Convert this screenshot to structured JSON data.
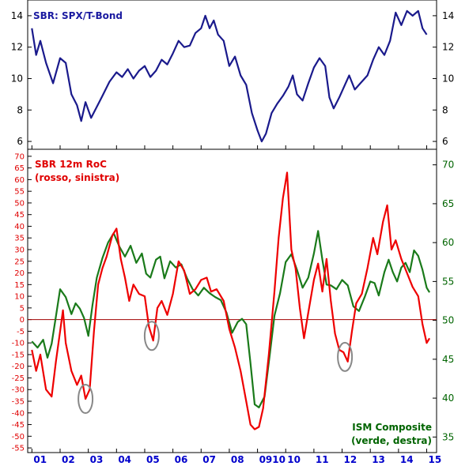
{
  "chart_data": [
    {
      "type": "line",
      "panel": "top",
      "title": "SBR: SPX/T-Bond",
      "ylim": [
        5.5,
        15
      ],
      "yticks": [
        6,
        8,
        10,
        12,
        14
      ],
      "grid": false,
      "series": [
        {
          "name": "SBR: SPX/T-Bond",
          "color": "#1a1a8c",
          "points": [
            [
              2001.0,
              13.2
            ],
            [
              2001.15,
              11.5
            ],
            [
              2001.3,
              12.4
            ],
            [
              2001.5,
              11.0
            ],
            [
              2001.75,
              9.7
            ],
            [
              2002.0,
              11.3
            ],
            [
              2002.2,
              11.0
            ],
            [
              2002.4,
              9.0
            ],
            [
              2002.6,
              8.3
            ],
            [
              2002.75,
              7.3
            ],
            [
              2002.9,
              8.5
            ],
            [
              2003.1,
              7.5
            ],
            [
              2003.3,
              8.2
            ],
            [
              2003.5,
              8.9
            ],
            [
              2003.75,
              9.8
            ],
            [
              2004.0,
              10.4
            ],
            [
              2004.2,
              10.1
            ],
            [
              2004.4,
              10.6
            ],
            [
              2004.6,
              10.0
            ],
            [
              2004.8,
              10.5
            ],
            [
              2005.0,
              10.8
            ],
            [
              2005.2,
              10.1
            ],
            [
              2005.4,
              10.5
            ],
            [
              2005.6,
              11.2
            ],
            [
              2005.8,
              10.9
            ],
            [
              2006.0,
              11.6
            ],
            [
              2006.2,
              12.4
            ],
            [
              2006.4,
              12.0
            ],
            [
              2006.6,
              12.1
            ],
            [
              2006.8,
              12.9
            ],
            [
              2007.0,
              13.2
            ],
            [
              2007.15,
              14.0
            ],
            [
              2007.3,
              13.2
            ],
            [
              2007.45,
              13.7
            ],
            [
              2007.6,
              12.8
            ],
            [
              2007.8,
              12.4
            ],
            [
              2008.0,
              10.8
            ],
            [
              2008.2,
              11.4
            ],
            [
              2008.4,
              10.2
            ],
            [
              2008.6,
              9.6
            ],
            [
              2008.8,
              7.8
            ],
            [
              2009.0,
              6.7
            ],
            [
              2009.15,
              6.0
            ],
            [
              2009.3,
              6.5
            ],
            [
              2009.5,
              7.8
            ],
            [
              2009.7,
              8.4
            ],
            [
              2009.9,
              8.9
            ],
            [
              2010.1,
              9.5
            ],
            [
              2010.25,
              10.2
            ],
            [
              2010.4,
              9.0
            ],
            [
              2010.6,
              8.6
            ],
            [
              2010.8,
              9.7
            ],
            [
              2011.0,
              10.7
            ],
            [
              2011.2,
              11.3
            ],
            [
              2011.4,
              10.8
            ],
            [
              2011.55,
              8.8
            ],
            [
              2011.7,
              8.1
            ],
            [
              2011.9,
              8.8
            ],
            [
              2012.1,
              9.6
            ],
            [
              2012.25,
              10.2
            ],
            [
              2012.45,
              9.3
            ],
            [
              2012.65,
              9.7
            ],
            [
              2012.9,
              10.2
            ],
            [
              2013.1,
              11.2
            ],
            [
              2013.3,
              12.0
            ],
            [
              2013.5,
              11.5
            ],
            [
              2013.7,
              12.4
            ],
            [
              2013.9,
              14.2
            ],
            [
              2014.1,
              13.4
            ],
            [
              2014.3,
              14.3
            ],
            [
              2014.5,
              14.0
            ],
            [
              2014.7,
              14.3
            ],
            [
              2014.85,
              13.2
            ],
            [
              2015.0,
              12.8
            ]
          ]
        }
      ]
    },
    {
      "type": "line",
      "panel": "bottom",
      "title": "SBR 12m RoC",
      "subtitle": "(rosso, sinistra)",
      "right_title": "ISM Composite",
      "right_subtitle": "(verde, destra)",
      "ylim_left": [
        -57,
        73
      ],
      "yticks_left": [
        -55,
        -50,
        -45,
        -40,
        -35,
        -30,
        -25,
        -20,
        -15,
        -10,
        -5,
        0,
        5,
        10,
        15,
        20,
        25,
        30,
        35,
        40,
        45,
        50,
        55,
        60,
        65,
        70
      ],
      "ylim_right": [
        33,
        72
      ],
      "yticks_right": [
        35,
        40,
        45,
        50,
        55,
        60,
        65,
        70
      ],
      "x_categories": [
        "01",
        "02",
        "03",
        "04",
        "05",
        "06",
        "07",
        "08",
        "0910",
        "10",
        "11",
        "12",
        "13",
        "14",
        "15"
      ],
      "xlim": [
        2000.85,
        2015.35
      ],
      "reference_line": {
        "axis": "left",
        "value": 0
      },
      "highlight_circles": [
        {
          "x": 2002.9,
          "y_left": -34
        },
        {
          "x": 2005.25,
          "y_left": -7
        },
        {
          "x": 2012.1,
          "y_left": -16
        }
      ],
      "grid": false,
      "series": [
        {
          "name": "SBR 12m RoC",
          "axis": "left",
          "color": "#ee0000",
          "points": [
            [
              2001.0,
              -13
            ],
            [
              2001.15,
              -22
            ],
            [
              2001.3,
              -15
            ],
            [
              2001.5,
              -30
            ],
            [
              2001.7,
              -33
            ],
            [
              2001.85,
              -18
            ],
            [
              2002.0,
              -5
            ],
            [
              2002.1,
              4
            ],
            [
              2002.2,
              -10
            ],
            [
              2002.4,
              -22
            ],
            [
              2002.6,
              -28
            ],
            [
              2002.75,
              -24
            ],
            [
              2002.9,
              -34
            ],
            [
              2003.05,
              -30
            ],
            [
              2003.2,
              -5
            ],
            [
              2003.35,
              15
            ],
            [
              2003.5,
              22
            ],
            [
              2003.65,
              27
            ],
            [
              2003.85,
              36
            ],
            [
              2004.0,
              39
            ],
            [
              2004.15,
              26
            ],
            [
              2004.3,
              18
            ],
            [
              2004.45,
              8
            ],
            [
              2004.6,
              15
            ],
            [
              2004.8,
              11
            ],
            [
              2005.0,
              10
            ],
            [
              2005.15,
              -3
            ],
            [
              2005.3,
              -9
            ],
            [
              2005.45,
              5
            ],
            [
              2005.6,
              8
            ],
            [
              2005.8,
              2
            ],
            [
              2006.0,
              11
            ],
            [
              2006.2,
              25
            ],
            [
              2006.4,
              21
            ],
            [
              2006.6,
              11
            ],
            [
              2006.8,
              13
            ],
            [
              2007.0,
              17
            ],
            [
              2007.2,
              18
            ],
            [
              2007.35,
              12
            ],
            [
              2007.55,
              13
            ],
            [
              2007.8,
              8
            ],
            [
              2008.0,
              -4
            ],
            [
              2008.2,
              -12
            ],
            [
              2008.4,
              -22
            ],
            [
              2008.6,
              -35
            ],
            [
              2008.75,
              -45
            ],
            [
              2008.9,
              -47
            ],
            [
              2009.05,
              -46
            ],
            [
              2009.2,
              -38
            ],
            [
              2009.4,
              -15
            ],
            [
              2009.6,
              12
            ],
            [
              2009.75,
              35
            ],
            [
              2009.9,
              52
            ],
            [
              2010.05,
              63
            ],
            [
              2010.2,
              30
            ],
            [
              2010.35,
              22
            ],
            [
              2010.5,
              5
            ],
            [
              2010.65,
              -8
            ],
            [
              2010.8,
              3
            ],
            [
              2011.0,
              17
            ],
            [
              2011.15,
              24
            ],
            [
              2011.3,
              12
            ],
            [
              2011.45,
              26
            ],
            [
              2011.6,
              8
            ],
            [
              2011.75,
              -6
            ],
            [
              2011.9,
              -13
            ],
            [
              2012.05,
              -14
            ],
            [
              2012.2,
              -18
            ],
            [
              2012.35,
              -5
            ],
            [
              2012.5,
              7
            ],
            [
              2012.7,
              11
            ],
            [
              2012.9,
              22
            ],
            [
              2013.1,
              35
            ],
            [
              2013.25,
              28
            ],
            [
              2013.45,
              42
            ],
            [
              2013.6,
              49
            ],
            [
              2013.75,
              30
            ],
            [
              2013.9,
              34
            ],
            [
              2014.1,
              26
            ],
            [
              2014.3,
              20
            ],
            [
              2014.5,
              14
            ],
            [
              2014.7,
              10
            ],
            [
              2014.85,
              -2
            ],
            [
              2015.0,
              -10
            ],
            [
              2015.1,
              -8
            ]
          ]
        },
        {
          "name": "ISM Composite",
          "axis": "right",
          "color": "#1a7a1a",
          "points": [
            [
              2001.0,
              47.3
            ],
            [
              2001.2,
              46.5
            ],
            [
              2001.4,
              47.5
            ],
            [
              2001.55,
              45.2
            ],
            [
              2001.7,
              47.0
            ],
            [
              2001.85,
              50.5
            ],
            [
              2002.0,
              54.0
            ],
            [
              2002.2,
              53.0
            ],
            [
              2002.4,
              50.8
            ],
            [
              2002.55,
              52.2
            ],
            [
              2002.7,
              51.5
            ],
            [
              2002.85,
              50.3
            ],
            [
              2003.0,
              48.0
            ],
            [
              2003.15,
              52.0
            ],
            [
              2003.3,
              55.5
            ],
            [
              2003.5,
              58.0
            ],
            [
              2003.7,
              60.0
            ],
            [
              2003.9,
              61.2
            ],
            [
              2004.1,
              59.5
            ],
            [
              2004.3,
              58.2
            ],
            [
              2004.5,
              59.6
            ],
            [
              2004.7,
              57.4
            ],
            [
              2004.9,
              58.6
            ],
            [
              2005.05,
              56.0
            ],
            [
              2005.2,
              55.5
            ],
            [
              2005.4,
              57.8
            ],
            [
              2005.55,
              58.2
            ],
            [
              2005.7,
              55.4
            ],
            [
              2005.9,
              57.6
            ],
            [
              2006.1,
              56.8
            ],
            [
              2006.3,
              57.2
            ],
            [
              2006.5,
              55.4
            ],
            [
              2006.7,
              54.0
            ],
            [
              2006.9,
              53.2
            ],
            [
              2007.1,
              54.2
            ],
            [
              2007.3,
              53.5
            ],
            [
              2007.5,
              53.0
            ],
            [
              2007.7,
              52.6
            ],
            [
              2007.9,
              51.0
            ],
            [
              2008.1,
              48.4
            ],
            [
              2008.3,
              49.8
            ],
            [
              2008.45,
              50.2
            ],
            [
              2008.6,
              49.5
            ],
            [
              2008.75,
              44.5
            ],
            [
              2008.9,
              39.2
            ],
            [
              2009.05,
              38.8
            ],
            [
              2009.25,
              40.2
            ],
            [
              2009.45,
              46.0
            ],
            [
              2009.6,
              50.6
            ],
            [
              2009.8,
              53.5
            ],
            [
              2010.0,
              57.5
            ],
            [
              2010.2,
              58.5
            ],
            [
              2010.4,
              56.5
            ],
            [
              2010.6,
              54.2
            ],
            [
              2010.8,
              55.5
            ],
            [
              2011.0,
              58.6
            ],
            [
              2011.15,
              61.5
            ],
            [
              2011.3,
              57.8
            ],
            [
              2011.45,
              54.6
            ],
            [
              2011.6,
              54.5
            ],
            [
              2011.8,
              54.0
            ],
            [
              2012.0,
              55.2
            ],
            [
              2012.2,
              54.5
            ],
            [
              2012.4,
              51.8
            ],
            [
              2012.6,
              51.2
            ],
            [
              2012.8,
              53.0
            ],
            [
              2013.0,
              55.0
            ],
            [
              2013.15,
              54.8
            ],
            [
              2013.3,
              53.2
            ],
            [
              2013.5,
              56.2
            ],
            [
              2013.65,
              57.8
            ],
            [
              2013.8,
              56.2
            ],
            [
              2013.95,
              55.0
            ],
            [
              2014.1,
              56.8
            ],
            [
              2014.25,
              57.4
            ],
            [
              2014.4,
              56.2
            ],
            [
              2014.55,
              59.0
            ],
            [
              2014.7,
              58.3
            ],
            [
              2014.85,
              56.5
            ],
            [
              2015.0,
              54.2
            ],
            [
              2015.1,
              53.6
            ]
          ]
        }
      ]
    }
  ]
}
